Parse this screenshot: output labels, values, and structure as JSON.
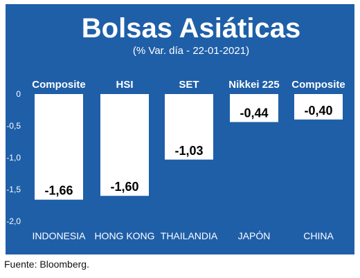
{
  "colors": {
    "panel_bg": "#1f5fa8",
    "bar_fill": "#ffffff",
    "text_light": "#ffffff",
    "text_dark": "#000000"
  },
  "chart_data": {
    "type": "bar",
    "title": "Bolsas Asiáticas",
    "subtitle": "(% Var. día - 22-01-2021)",
    "index_labels": [
      "Composite",
      "HSI",
      "SET",
      "Nikkei 225",
      "Composite"
    ],
    "categories": [
      "INDONESIA",
      "HONG KONG",
      "THAILANDIA",
      "JAPÓN",
      "CHINA"
    ],
    "values": [
      -1.66,
      -1.6,
      -1.03,
      -0.44,
      -0.4
    ],
    "value_labels": [
      "-1,66",
      "-1,60",
      "-1,03",
      "-0,44",
      "-0,40"
    ],
    "yticks": [
      0,
      -0.5,
      -1.0,
      -1.5,
      -2.0
    ],
    "ytick_labels": [
      "0",
      "-0,5",
      "-1,0",
      "-1,5",
      "-2,0"
    ],
    "ylim": [
      -2.0,
      0
    ],
    "grid": false,
    "legend": "none"
  },
  "source": "Fuente: Bloomberg."
}
